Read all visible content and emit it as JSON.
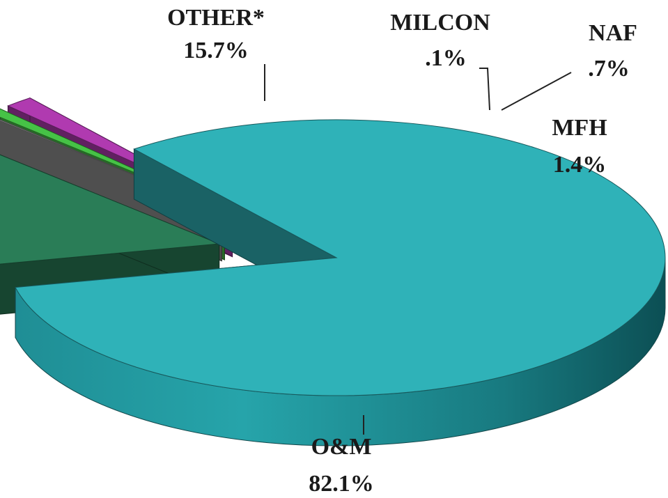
{
  "chart_data": {
    "type": "pie",
    "title": "",
    "slices": [
      {
        "label": "O&M",
        "value": 82.1,
        "value_text": "82.1%",
        "color": "#2fb2b8",
        "exploded": false
      },
      {
        "label": "OTHER*",
        "value": 15.7,
        "value_text": "15.7%",
        "color": "#2a7d57",
        "exploded": true
      },
      {
        "label": "MILCON",
        "value": 0.1,
        "value_text": ".1%",
        "color": "#8f8f8f",
        "exploded": true
      },
      {
        "label": "NAF",
        "value": 0.7,
        "value_text": ".7%",
        "color": "#46c246",
        "exploded": true
      },
      {
        "label": "MFH",
        "value": 1.4,
        "value_text": "1.4%",
        "color": "#b03ab0",
        "exploded": true
      }
    ],
    "style": "3d-exploded"
  }
}
